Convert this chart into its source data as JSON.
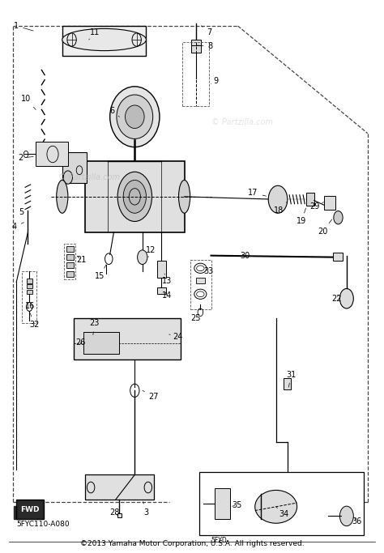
{
  "title": "©2013 Yamaha Motor Corporation, U.S.A. All rights reserved.",
  "diagram_code_bottom_left": "5FYC110-A080",
  "diagram_code_bottom_mid": "5FYD",
  "watermark": "© Partzilla.com",
  "bg_color": "#ffffff",
  "line_color": "#000000",
  "dashed_line_color": "#555555",
  "figsize": [
    4.74,
    6.83
  ],
  "dpi": 100,
  "font_size_label": 7,
  "font_size_title": 6.5,
  "font_size_watermark": 7,
  "font_size_code": 6.5
}
